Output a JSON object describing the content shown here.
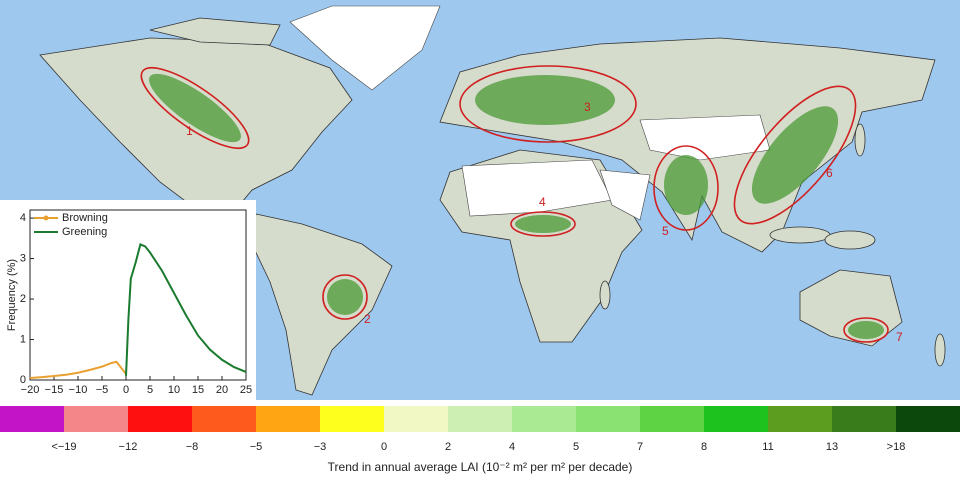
{
  "map": {
    "regions": [
      "1",
      "2",
      "3",
      "4",
      "5",
      "6",
      "7"
    ]
  },
  "chart_data": {
    "type": "line",
    "ylabel": "Frequency (%)",
    "x": [
      -20,
      -17.5,
      -15,
      -12.5,
      -10,
      -7.5,
      -5,
      -3,
      -2,
      -1,
      0,
      0.5,
      1,
      2,
      3,
      4,
      5,
      7.5,
      10,
      12.5,
      15,
      17.5,
      20,
      22.5,
      25
    ],
    "series": [
      {
        "name": "Browning",
        "color": "#e8a030",
        "marker": true,
        "values": [
          0.05,
          0.07,
          0.1,
          0.13,
          0.18,
          0.25,
          0.33,
          0.42,
          0.45,
          0.3,
          0.15,
          null,
          null,
          null,
          null,
          null,
          null,
          null,
          null,
          null,
          null,
          null,
          null,
          null,
          null
        ]
      },
      {
        "name": "Greening",
        "color": "#1a7a2e",
        "marker": false,
        "values": [
          null,
          null,
          null,
          null,
          null,
          null,
          null,
          null,
          null,
          null,
          0.1,
          1.5,
          2.5,
          2.9,
          3.35,
          3.3,
          3.15,
          2.7,
          2.15,
          1.6,
          1.1,
          0.75,
          0.5,
          0.32,
          0.2
        ]
      }
    ],
    "xlim": [
      -20,
      25
    ],
    "xticks": [
      {
        "value": -20,
        "label": "−20"
      },
      {
        "value": -15,
        "label": "−15"
      },
      {
        "value": -10,
        "label": "−10"
      },
      {
        "value": -5,
        "label": "−5"
      },
      0,
      5,
      10,
      15,
      20,
      25
    ],
    "ylim": [
      0,
      4.2
    ],
    "yticks": [
      0,
      1,
      2,
      3,
      4
    ],
    "legend": "upper left"
  },
  "colorbar": {
    "colors": [
      "#c414c8",
      "#f4868a",
      "#ff1010",
      "#ff5a1e",
      "#ffa514",
      "#ffff1e",
      "#f2f8c4",
      "#cdefb4",
      "#aaea92",
      "#8ae272",
      "#5ed444",
      "#1ec21e",
      "#5c9c1e",
      "#387c1c",
      "#0c480c"
    ],
    "labels": [
      "<−19",
      "−12",
      "−8",
      "−5",
      "−3",
      "0",
      "2",
      "4",
      "5",
      "7",
      "8",
      "11",
      "13",
      ">18"
    ],
    "title": "Trend in annual average LAI (10⁻² m² per m² per decade)"
  }
}
